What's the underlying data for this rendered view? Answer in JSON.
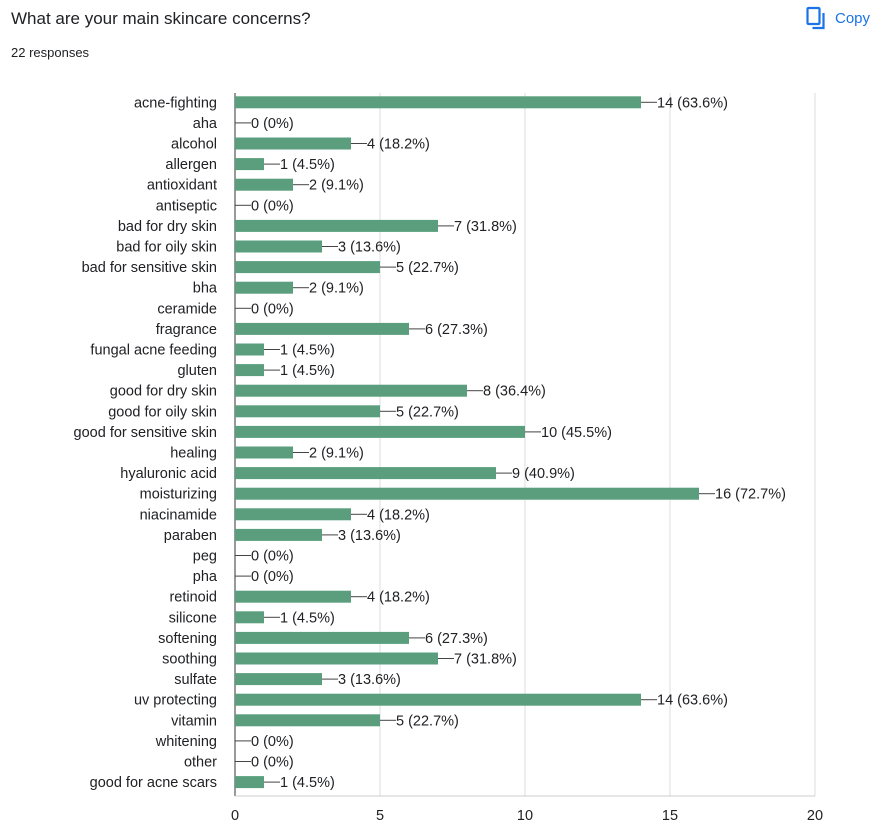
{
  "header": {
    "question": "What are your main skincare concerns?",
    "responses": "22 responses",
    "copy_label": "Copy",
    "copy_icon": "copy-icon",
    "accent_color": "#1a73e8"
  },
  "chart_data": {
    "type": "bar",
    "orientation": "horizontal",
    "bar_color": "#5a9e7e",
    "xlim": [
      0,
      20
    ],
    "xticks": [
      0,
      5,
      10,
      15,
      20
    ],
    "grid": true,
    "categories": [
      "acne-fighting",
      "aha",
      "alcohol",
      "allergen",
      "antioxidant",
      "antiseptic",
      "bad for dry skin",
      "bad for oily skin",
      "bad for sensitive skin",
      "bha",
      "ceramide",
      "fragrance",
      "fungal acne feeding",
      "gluten",
      "good for dry skin",
      "good for oily skin",
      "good for sensitive skin",
      "healing",
      "hyaluronic acid",
      "moisturizing",
      "niacinamide",
      "paraben",
      "peg",
      "pha",
      "retinoid",
      "silicone",
      "softening",
      "soothing",
      "sulfate",
      "uv protecting",
      "vitamin",
      "whitening",
      "other",
      "good for acne scars"
    ],
    "values": [
      14,
      0,
      4,
      1,
      2,
      0,
      7,
      3,
      5,
      2,
      0,
      6,
      1,
      1,
      8,
      5,
      10,
      2,
      9,
      16,
      4,
      3,
      0,
      0,
      4,
      1,
      6,
      7,
      3,
      14,
      5,
      0,
      0,
      1
    ],
    "labels": [
      "14 (63.6%)",
      "0 (0%)",
      "4 (18.2%)",
      "1 (4.5%)",
      "2 (9.1%)",
      "0 (0%)",
      "7 (31.8%)",
      "3 (13.6%)",
      "5 (22.7%)",
      "2 (9.1%)",
      "0 (0%)",
      "6 (27.3%)",
      "1 (4.5%)",
      "1 (4.5%)",
      "8 (36.4%)",
      "5 (22.7%)",
      "10 (45.5%)",
      "2 (9.1%)",
      "9 (40.9%)",
      "16 (72.7%)",
      "4 (18.2%)",
      "3 (13.6%)",
      "0 (0%)",
      "0 (0%)",
      "4 (18.2%)",
      "1 (4.5%)",
      "6 (27.3%)",
      "7 (31.8%)",
      "3 (13.6%)",
      "14 (63.6%)",
      "5 (22.7%)",
      "0 (0%)",
      "0 (0%)",
      "1 (4.5%)"
    ]
  }
}
